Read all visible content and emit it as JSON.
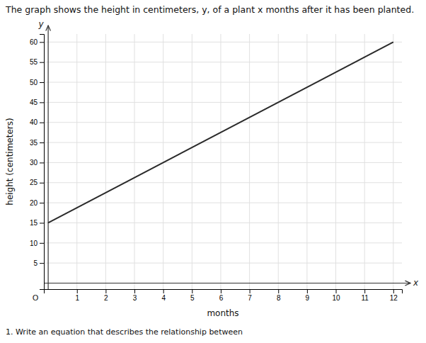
{
  "chart_data": {
    "type": "line",
    "title": "The graph shows the height in centimeters, y, of a plant x months after it has been planted.",
    "xlabel": "months",
    "ylabel": "height (centimeters)",
    "annotations": [
      "x",
      "y",
      "O",
      "1. Write an equation that describes the relationship between"
    ],
    "x": [
      0,
      12
    ],
    "values": [
      15,
      60
    ],
    "color": "#2a2a2a",
    "xlim": [
      -0.15,
      12.3
    ],
    "ylim": [
      -1.5,
      62
    ],
    "xticks": [
      1,
      2,
      3,
      4,
      5,
      6,
      7,
      8,
      9,
      10,
      11,
      12
    ],
    "yticks": [
      5,
      10,
      15,
      20,
      25,
      30,
      35,
      40,
      45,
      50,
      55,
      60
    ],
    "grid": true
  }
}
